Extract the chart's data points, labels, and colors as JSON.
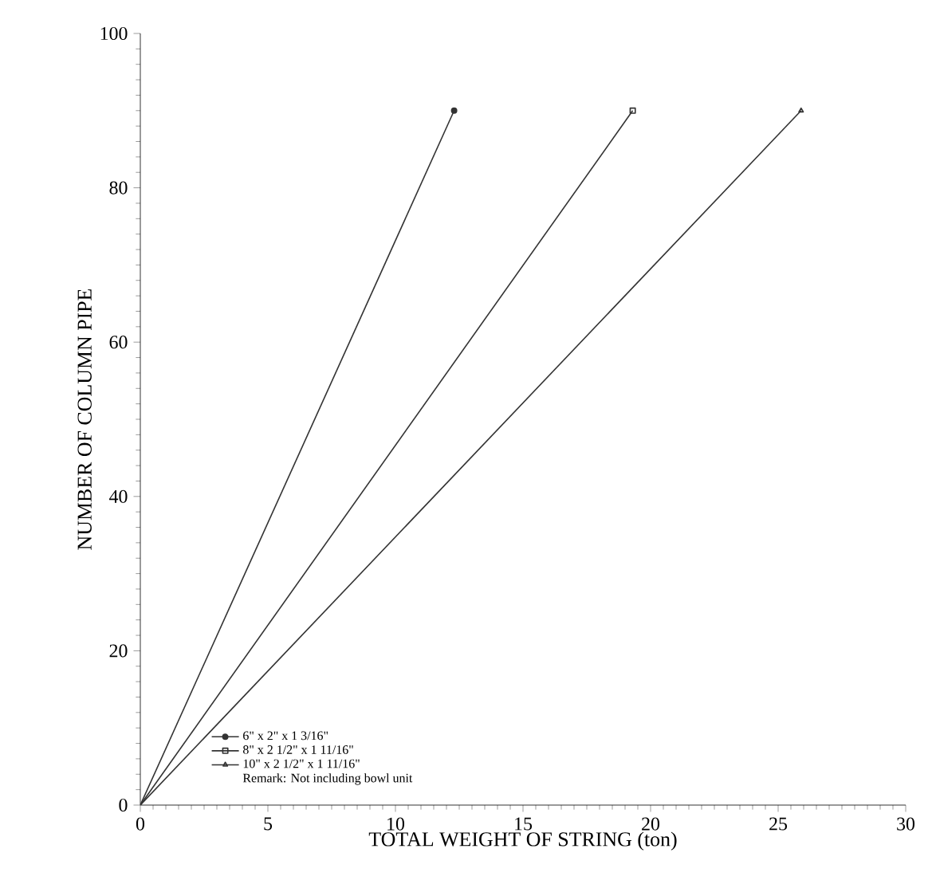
{
  "chart_data": {
    "type": "line",
    "xlabel": "TOTAL WEIGHT OF STRING (ton)",
    "ylabel": "NUMBER OF COLUMN PIPE",
    "xlim": [
      0,
      30
    ],
    "xticks": [
      0,
      5,
      10,
      15,
      20,
      25,
      30
    ],
    "ylim": [
      0,
      100
    ],
    "yticks": [
      0,
      20,
      40,
      60,
      80,
      100
    ],
    "grid": false,
    "legend": "bottom left",
    "line_style": "solid",
    "series": [
      {
        "name": "6\" x 2\" x 1 3/16\"",
        "color": "#333333",
        "marker": "circle",
        "x": [
          0,
          12.3
        ],
        "values": [
          0,
          90
        ]
      },
      {
        "name": "8\" x 2 1/2\" x 1 11/16\"",
        "color": "#333333",
        "marker": "square",
        "x": [
          0,
          19.3
        ],
        "values": [
          0,
          90
        ]
      },
      {
        "name": "10\" x 2 1/2\" x 1 11/16\"",
        "color": "#333333",
        "marker": "triangle",
        "x": [
          0,
          25.9
        ],
        "values": [
          0,
          90
        ]
      }
    ],
    "annotations": [
      "Remark: Not including bowl unit"
    ]
  }
}
